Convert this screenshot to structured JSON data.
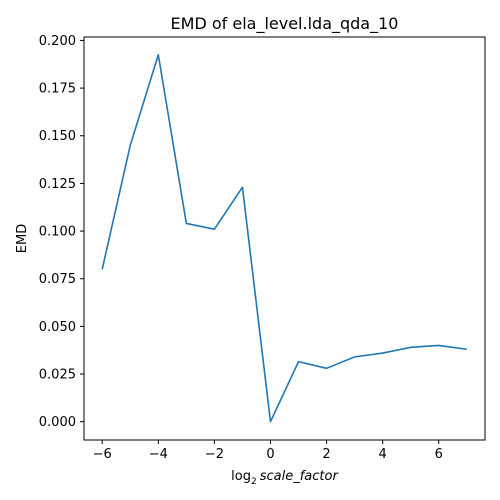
{
  "chart_data": {
    "type": "line",
    "title": "EMD of ela_level.lda_qda_10",
    "xlabel_base": "log",
    "xlabel_sub": "2",
    "xlabel_var": "scale_factor",
    "ylabel": "EMD",
    "xlim": [
      -6.65,
      7.65
    ],
    "ylim": [
      -0.0096,
      0.2018
    ],
    "xticks": [
      -6,
      -4,
      -2,
      0,
      2,
      4,
      6
    ],
    "xtick_labels": [
      "−6",
      "−4",
      "−2",
      "0",
      "2",
      "4",
      "6"
    ],
    "yticks": [
      0.0,
      0.025,
      0.05,
      0.075,
      0.1,
      0.125,
      0.15,
      0.175,
      0.2
    ],
    "ytick_labels": [
      "0.000",
      "0.025",
      "0.050",
      "0.075",
      "0.100",
      "0.125",
      "0.150",
      "0.175",
      "0.200"
    ],
    "grid": false,
    "series": [
      {
        "name": "EMD",
        "color": "#1f77b4",
        "x": [
          -6,
          -5,
          -4,
          -3,
          -2,
          -1,
          0,
          1,
          2,
          3,
          4,
          5,
          6,
          7
        ],
        "y": [
          0.08,
          0.145,
          0.1925,
          0.104,
          0.101,
          0.123,
          0.0,
          0.0315,
          0.028,
          0.034,
          0.036,
          0.039,
          0.04,
          0.038
        ]
      }
    ]
  }
}
